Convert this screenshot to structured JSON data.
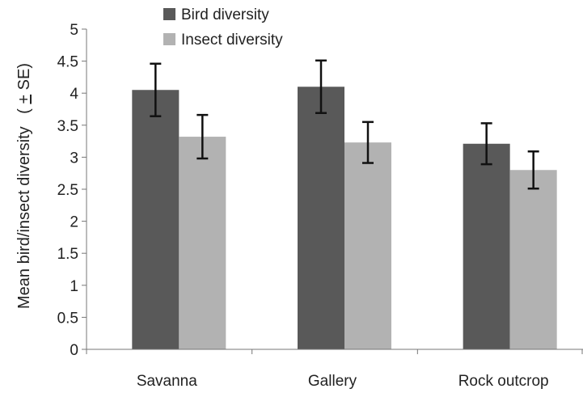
{
  "chart_data": {
    "type": "bar",
    "title": "",
    "xlabel": "",
    "ylabel_text": "Mean bird/insect diversity",
    "ylabel_suffix_pre": "(",
    "ylabel_suffix_pm": "+",
    "ylabel_suffix_post": " SE)",
    "categories": [
      "Savanna",
      "Gallery",
      "Rock outcrop"
    ],
    "series": [
      {
        "name": "Bird diversity",
        "color": "#595959",
        "values": [
          4.05,
          4.1,
          3.21
        ],
        "errors": [
          0.41,
          0.41,
          0.32
        ]
      },
      {
        "name": "Insect diversity",
        "color": "#b2b2b2",
        "values": [
          3.32,
          3.23,
          2.8
        ],
        "errors": [
          0.34,
          0.32,
          0.29
        ]
      }
    ],
    "ylim": [
      0,
      5
    ],
    "yticks": [
      0,
      0.5,
      1,
      1.5,
      2,
      2.5,
      3,
      3.5,
      4,
      4.5,
      5
    ],
    "ytick_labels": [
      "0",
      "0.5",
      "1",
      "1.5",
      "2",
      "2.5",
      "3",
      "3.5",
      "4",
      "4.5",
      "5"
    ],
    "grid": false,
    "legend_position": "top"
  }
}
